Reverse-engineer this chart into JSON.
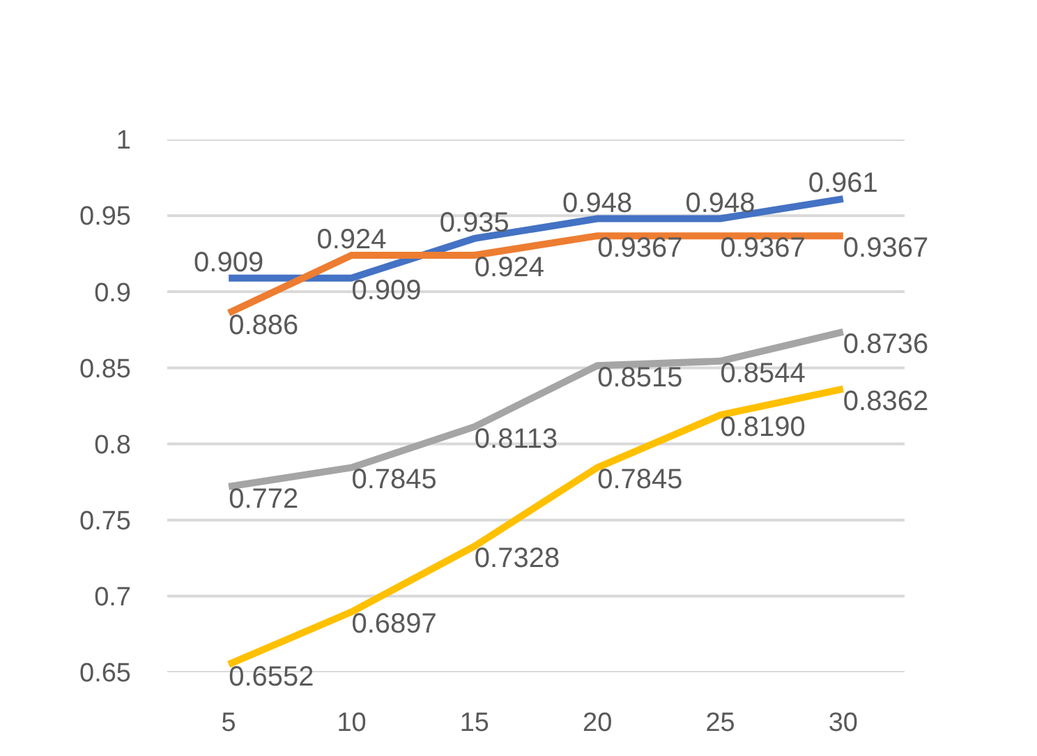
{
  "chart_data": {
    "type": "line",
    "categories": [
      "5",
      "10",
      "15",
      "20",
      "25",
      "30"
    ],
    "ylim": [
      0.65,
      1
    ],
    "yticks": [
      {
        "value": 0.65,
        "label": "0.65"
      },
      {
        "value": 0.7,
        "label": "0.7"
      },
      {
        "value": 0.75,
        "label": "0.75"
      },
      {
        "value": 0.8,
        "label": "0.8"
      },
      {
        "value": 0.85,
        "label": "0.85"
      },
      {
        "value": 0.9,
        "label": "0.9"
      },
      {
        "value": 0.95,
        "label": "0.95"
      },
      {
        "value": 1,
        "label": "1"
      }
    ],
    "grid": "y",
    "marker": "none",
    "line_style": "solid",
    "series": [
      {
        "color": "#4472c4",
        "values": [
          0.909,
          0.909,
          0.935,
          0.948,
          0.948,
          0.961
        ],
        "value_labels": [
          "0.909",
          "0.909",
          "0.935",
          "0.948",
          "0.948",
          "0.961"
        ]
      },
      {
        "color": "#ed7d31",
        "values": [
          0.886,
          0.924,
          0.924,
          0.9367,
          0.9367,
          0.9367
        ],
        "value_labels": [
          "0.886",
          "0.924",
          "0.924",
          "0.9367",
          "0.9367",
          "0.9367"
        ]
      },
      {
        "color": "#a5a5a5",
        "values": [
          0.772,
          0.7845,
          0.8113,
          0.8515,
          0.8544,
          0.8736
        ],
        "value_labels": [
          "0.772",
          "0.7845",
          "0.8113",
          "0.8515",
          "0.8544",
          "0.8736"
        ]
      },
      {
        "color": "#ffc000",
        "values": [
          0.6552,
          0.6897,
          0.7328,
          0.7845,
          0.819,
          0.8362
        ],
        "value_labels": [
          "0.6552",
          "0.6897",
          "0.7328",
          "0.7845",
          "0.8190",
          "0.8362"
        ]
      }
    ]
  }
}
